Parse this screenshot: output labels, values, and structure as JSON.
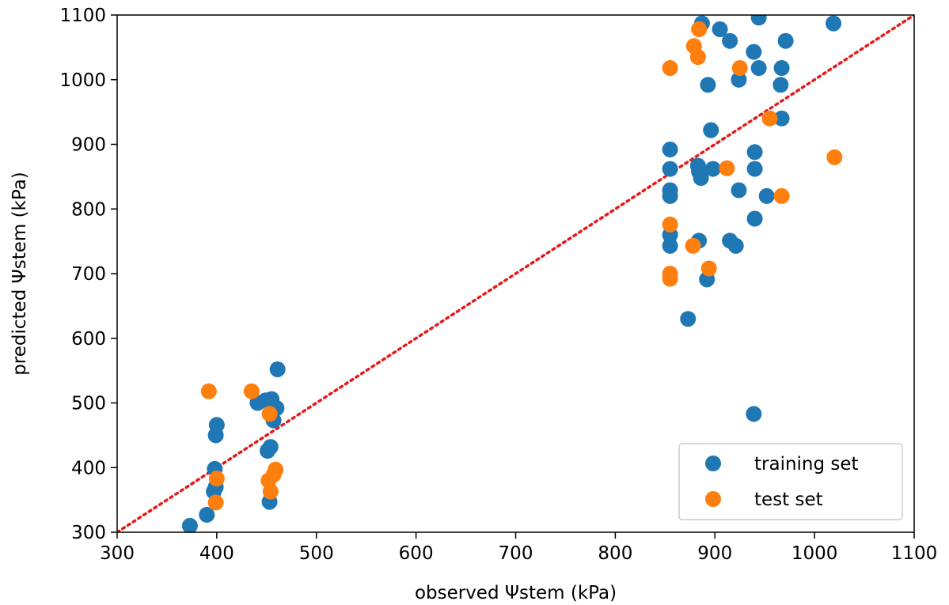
{
  "chart_data": {
    "type": "scatter",
    "title": "",
    "xlabel": "observed Ψstem (kPa)",
    "ylabel": "predicted Ψstem (kPa)",
    "xlim": [
      300,
      1100
    ],
    "ylim": [
      300,
      1100
    ],
    "xticks": [
      "300",
      "400",
      "500",
      "600",
      "700",
      "800",
      "900",
      "1000",
      "1100"
    ],
    "yticks": [
      "300",
      "400",
      "500",
      "600",
      "700",
      "800",
      "900",
      "1000",
      "1100"
    ],
    "grid": false,
    "legend_position": "lower-right",
    "reference_line": {
      "style": "dotted",
      "color": "#e41a1c",
      "from": [
        300,
        300
      ],
      "to": [
        1100,
        1100
      ]
    },
    "series": [
      {
        "name": "training set",
        "color": "#1f77b4",
        "points": [
          [
            373,
            310
          ],
          [
            390,
            327
          ],
          [
            397,
            363
          ],
          [
            398,
            398
          ],
          [
            399,
            370
          ],
          [
            399,
            450
          ],
          [
            400,
            466
          ],
          [
            441,
            500
          ],
          [
            449,
            504
          ],
          [
            451,
            426
          ],
          [
            454,
            432
          ],
          [
            455,
            506
          ],
          [
            453,
            347
          ],
          [
            457,
            473
          ],
          [
            460,
            492
          ],
          [
            461,
            552
          ],
          [
            855,
            892
          ],
          [
            855,
            862
          ],
          [
            855,
            829
          ],
          [
            855,
            820
          ],
          [
            855,
            760
          ],
          [
            855,
            743
          ],
          [
            873,
            630
          ],
          [
            883,
            867
          ],
          [
            884,
            858
          ],
          [
            886,
            848
          ],
          [
            884,
            751
          ],
          [
            887,
            1087
          ],
          [
            893,
            992
          ],
          [
            892,
            691
          ],
          [
            896,
            922
          ],
          [
            898,
            862
          ],
          [
            905,
            1078
          ],
          [
            915,
            1060
          ],
          [
            915,
            751
          ],
          [
            921,
            743
          ],
          [
            924,
            1000
          ],
          [
            924,
            829
          ],
          [
            939,
            1043
          ],
          [
            940,
            888
          ],
          [
            940,
            862
          ],
          [
            940,
            785
          ],
          [
            939,
            483
          ],
          [
            944,
            1096
          ],
          [
            944,
            1018
          ],
          [
            952,
            820
          ],
          [
            966,
            992
          ],
          [
            967,
            1018
          ],
          [
            967,
            940
          ],
          [
            971,
            1060
          ],
          [
            1019,
            1087
          ]
        ]
      },
      {
        "name": "test set",
        "color": "#ff7f0e",
        "points": [
          [
            392,
            518
          ],
          [
            399,
            346
          ],
          [
            400,
            383
          ],
          [
            435,
            518
          ],
          [
            453,
            483
          ],
          [
            452,
            380
          ],
          [
            454,
            363
          ],
          [
            457,
            389
          ],
          [
            459,
            397
          ],
          [
            855,
            1018
          ],
          [
            855,
            776
          ],
          [
            855,
            700
          ],
          [
            855,
            692
          ],
          [
            878,
            743
          ],
          [
            879,
            1052
          ],
          [
            883,
            1035
          ],
          [
            884,
            1078
          ],
          [
            894,
            708
          ],
          [
            912,
            863
          ],
          [
            925,
            1018
          ],
          [
            955,
            940
          ],
          [
            967,
            820
          ],
          [
            1020,
            880
          ]
        ]
      }
    ]
  }
}
